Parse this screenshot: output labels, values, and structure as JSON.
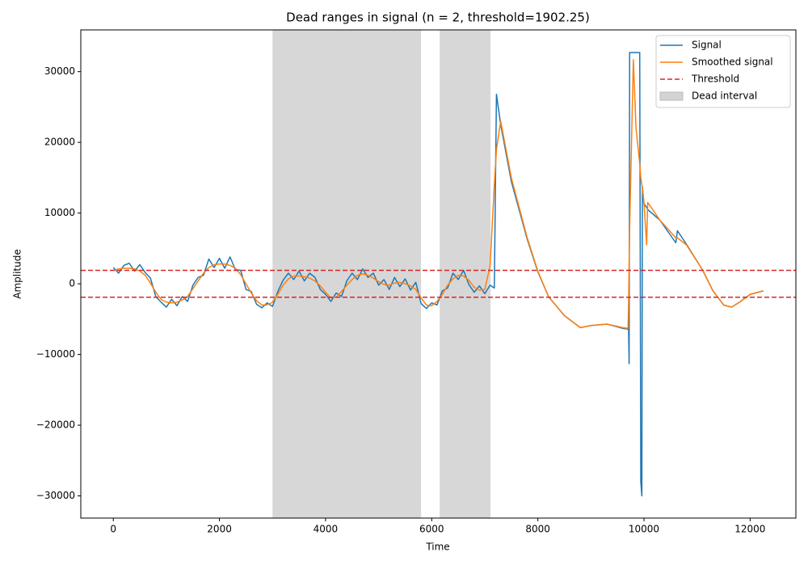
{
  "chart_data": {
    "type": "line",
    "title": "Dead ranges in signal (n = 2, threshold=1902.25)",
    "x_label": "Time",
    "y_label": "Amplitude",
    "x": [
      0,
      100,
      200,
      300,
      400,
      500,
      600,
      700,
      800,
      900,
      1000,
      1100,
      1200,
      1300,
      1400,
      1500,
      1600,
      1700,
      1800,
      1900,
      2000,
      2100,
      2200,
      2300,
      2400,
      2500,
      2600,
      2700,
      2800,
      2900,
      3000,
      3100,
      3200,
      3300,
      3400,
      3500,
      3600,
      3700,
      3800,
      3900,
      4000,
      4100,
      4200,
      4300,
      4400,
      4500,
      4600,
      4700,
      4800,
      4900,
      5000,
      5100,
      5200,
      5300,
      5400,
      5500,
      5600,
      5700,
      5800,
      5900,
      6000,
      6100,
      6200,
      6300,
      6400,
      6500,
      6600,
      6700,
      6800,
      6900,
      7000,
      7100,
      7180,
      7220,
      7300,
      7500,
      7800,
      8000,
      8200,
      8500,
      8800,
      9000,
      9300,
      9600,
      9700,
      9710,
      9720,
      9730,
      9800,
      9850,
      9920,
      9940,
      9960,
      9970,
      10000,
      10050,
      10070,
      10300,
      10600,
      10630,
      10800,
      11100,
      11300,
      11500,
      11650,
      11800,
      12000,
      12250
    ],
    "series": [
      {
        "name": "Signal",
        "color": "#1f77b4",
        "values": [
          2300,
          1500,
          2600,
          2900,
          1800,
          2700,
          1600,
          800,
          -1800,
          -2600,
          -3300,
          -2200,
          -3100,
          -1800,
          -2500,
          -200,
          900,
          1200,
          3500,
          2300,
          3600,
          2200,
          3800,
          2000,
          1900,
          -800,
          -1100,
          -2900,
          -3400,
          -2700,
          -3200,
          -1100,
          500,
          1500,
          600,
          1800,
          400,
          1500,
          900,
          -800,
          -1500,
          -2500,
          -1300,
          -1800,
          400,
          1500,
          600,
          2100,
          900,
          1500,
          -200,
          600,
          -800,
          900,
          -400,
          700,
          -900,
          200,
          -2800,
          -3500,
          -2700,
          -3000,
          -1000,
          -600,
          1500,
          600,
          1900,
          -100,
          -1200,
          -300,
          -1400,
          -200,
          -600,
          26800,
          22500,
          14500,
          6300,
          1700,
          -1800,
          -4500,
          -6200,
          -5900,
          -5700,
          -6300,
          -6400,
          -6500,
          -11300,
          32700,
          32700,
          32700,
          32700,
          -28000,
          -30000,
          13700,
          11300,
          10800,
          10500,
          9000,
          5800,
          7500,
          5600,
          2000,
          -1000,
          -3000,
          -3300,
          -2600,
          -1500,
          -1000
        ]
      },
      {
        "name": "Smoothed signal",
        "color": "#ff7f0e",
        "values": [
          1900,
          2100,
          2200,
          2200,
          2100,
          1800,
          1200,
          100,
          -1200,
          -2200,
          -2600,
          -2700,
          -2600,
          -2300,
          -1800,
          -700,
          400,
          1500,
          2300,
          2700,
          2800,
          2800,
          2600,
          2200,
          1300,
          0,
          -1300,
          -2400,
          -3000,
          -3000,
          -2600,
          -1500,
          -200,
          700,
          1100,
          1100,
          1000,
          800,
          400,
          -300,
          -1200,
          -2000,
          -1900,
          -1100,
          -200,
          600,
          1200,
          1400,
          1200,
          800,
          300,
          -100,
          -200,
          100,
          200,
          0,
          -300,
          -800,
          -2000,
          -3000,
          -3100,
          -2500,
          -1500,
          -200,
          700,
          1200,
          1100,
          500,
          -500,
          -900,
          -800,
          2500,
          14000,
          19000,
          23000,
          15000,
          6500,
          1800,
          -1800,
          -4500,
          -6200,
          -5900,
          -5700,
          -6200,
          -6300,
          -3000,
          3000,
          8000,
          31700,
          22000,
          17000,
          15000,
          14000,
          13500,
          11500,
          5500,
          11500,
          9000,
          6500,
          6500,
          5500,
          2000,
          -1000,
          -3000,
          -3300,
          -2600,
          -1500,
          -1000
        ]
      }
    ],
    "threshold_name": "Threshold",
    "threshold_color": "#d62728",
    "threshold_lines": [
      1902.25,
      -1902.25
    ],
    "dead_name": "Dead interval",
    "dead_color": "#d3d3d3",
    "dead_intervals": [
      [
        3000,
        5800
      ],
      [
        6150,
        7110
      ]
    ],
    "xlim": [
      -612.5,
      12862.5
    ],
    "ylim": [
      -33138,
      35906
    ],
    "xticks": [
      0,
      2000,
      4000,
      6000,
      8000,
      10000,
      12000
    ],
    "yticks": [
      {
        "value": -30000,
        "label": "−30000"
      },
      {
        "value": -20000,
        "label": "−20000"
      },
      {
        "value": -10000,
        "label": "−10000"
      },
      0,
      10000,
      20000,
      30000
    ],
    "legend": "upper right"
  }
}
